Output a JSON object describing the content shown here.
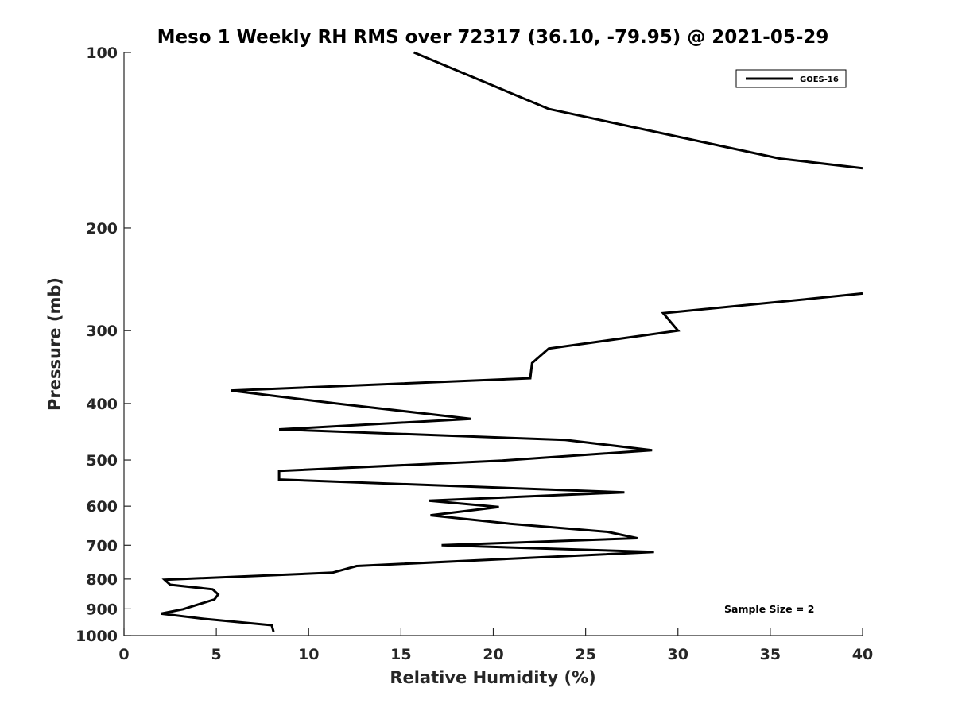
{
  "chart_data": {
    "type": "line",
    "title": "Meso 1 Weekly RH RMS over 72317 (36.10, -79.95) @ 2021-05-29",
    "xlabel": "Relative Humidity (%)",
    "ylabel": "Pressure (mb)",
    "xlim": [
      0,
      40
    ],
    "ylim": [
      100,
      1000
    ],
    "y_scale": "log",
    "y_reversed": true,
    "grid": false,
    "legend_position": "top-right",
    "x_ticks": [
      0,
      5,
      10,
      15,
      20,
      25,
      30,
      35,
      40
    ],
    "y_ticks": [
      100,
      200,
      300,
      400,
      500,
      600,
      700,
      800,
      900,
      1000
    ],
    "annotation": "Sample Size = 2",
    "color": "#000000",
    "series": [
      {
        "name": "GOES-16",
        "points": [
          [
            15.7,
            100
          ],
          [
            23.0,
            125
          ],
          [
            35.5,
            152
          ],
          [
            40.0,
            158
          ],
          [
            null,
            null
          ],
          [
            40.0,
            259
          ],
          [
            36.9,
            265
          ],
          [
            29.2,
            280
          ],
          [
            30.0,
            300
          ],
          [
            23.0,
            322
          ],
          [
            22.1,
            341
          ],
          [
            22.0,
            362
          ],
          [
            5.8,
            380
          ],
          [
            11.5,
            400
          ],
          [
            18.8,
            425
          ],
          [
            8.4,
            443
          ],
          [
            23.9,
            462
          ],
          [
            28.6,
            481
          ],
          [
            20.5,
            501
          ],
          [
            8.4,
            522
          ],
          [
            8.4,
            540
          ],
          [
            27.1,
            568
          ],
          [
            16.5,
            587
          ],
          [
            20.3,
            602
          ],
          [
            16.6,
            622
          ],
          [
            20.9,
            643
          ],
          [
            26.2,
            664
          ],
          [
            27.8,
            681
          ],
          [
            17.2,
            700
          ],
          [
            28.7,
            719
          ],
          [
            12.6,
            760
          ],
          [
            11.3,
            780
          ],
          [
            2.2,
            802
          ],
          [
            2.5,
            818
          ],
          [
            4.8,
            833
          ],
          [
            5.1,
            850
          ],
          [
            4.9,
            867
          ],
          [
            3.2,
            901
          ],
          [
            2.0,
            917
          ],
          [
            4.3,
            936
          ],
          [
            8.0,
            960
          ],
          [
            8.1,
            985
          ]
        ]
      }
    ]
  }
}
